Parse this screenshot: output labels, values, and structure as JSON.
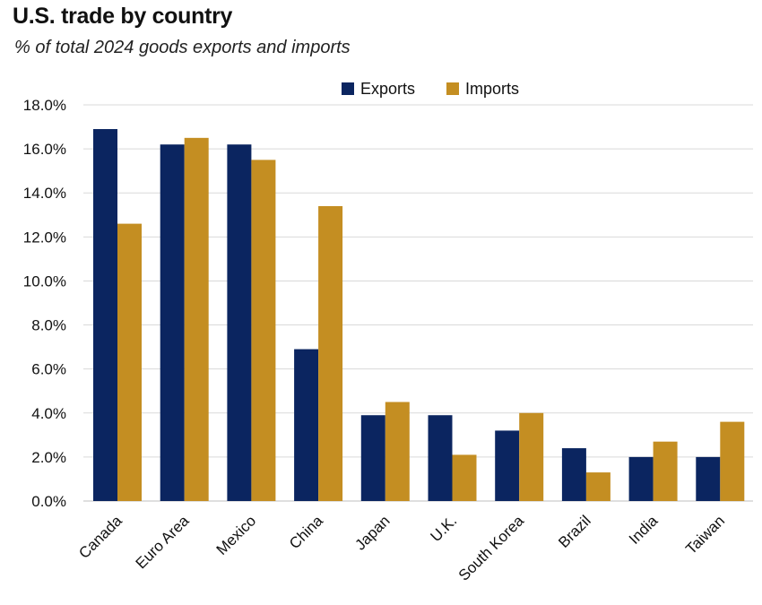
{
  "header": {
    "title": "U.S. trade by country",
    "subtitle": "% of total 2024 goods exports and imports"
  },
  "chart_data": {
    "type": "bar",
    "title": "U.S. trade by country",
    "subtitle": "% of total 2024 goods exports and imports",
    "xlabel": "",
    "ylabel": "",
    "categories": [
      "Canada",
      "Euro Area",
      "Mexico",
      "China",
      "Japan",
      "U.K.",
      "South Korea",
      "Brazil",
      "India",
      "Taiwan"
    ],
    "series": [
      {
        "name": "Exports",
        "color": "#0b2560",
        "values": [
          16.9,
          16.2,
          16.2,
          6.9,
          3.9,
          3.9,
          3.2,
          2.4,
          2.0,
          2.0
        ]
      },
      {
        "name": "Imports",
        "color": "#c48e22",
        "values": [
          12.6,
          16.5,
          15.5,
          13.4,
          4.5,
          2.1,
          4.0,
          1.3,
          2.7,
          3.6
        ]
      }
    ],
    "ylim": [
      0,
      18
    ],
    "yticks": [
      0,
      2,
      4,
      6,
      8,
      10,
      12,
      14,
      16,
      18
    ],
    "ytick_labels": [
      "0.0%",
      "2.0%",
      "4.0%",
      "6.0%",
      "8.0%",
      "10.0%",
      "12.0%",
      "14.0%",
      "16.0%",
      "18.0%"
    ],
    "grid": true,
    "legend_position": "top-center"
  }
}
